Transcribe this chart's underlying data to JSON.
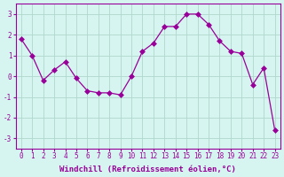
{
  "x": [
    0,
    1,
    2,
    3,
    4,
    5,
    6,
    7,
    8,
    9,
    10,
    11,
    12,
    13,
    14,
    15,
    16,
    17,
    18,
    19,
    20,
    21,
    22,
    23
  ],
  "y": [
    1.8,
    1.0,
    -0.2,
    0.3,
    0.7,
    -0.1,
    -0.7,
    -0.8,
    -0.8,
    -0.9,
    0.0,
    1.2,
    1.6,
    2.4,
    2.4,
    3.0,
    3.0,
    2.5,
    1.7,
    1.2,
    1.1,
    -0.4,
    0.4,
    -2.6
  ],
  "line_color": "#990099",
  "bg_color": "#d6f5f0",
  "grid_color": "#b0d8cc",
  "xlabel": "Windchill (Refroidissement éolien,°C)",
  "xlabel_fontsize": 6.5,
  "tick_fontsize": 5.5,
  "ylim": [
    -3.5,
    3.5
  ],
  "yticks": [
    -3,
    -2,
    -1,
    0,
    1,
    2,
    3
  ],
  "xlim": [
    -0.5,
    23.5
  ],
  "linewidth": 0.9,
  "markersize": 3.0
}
